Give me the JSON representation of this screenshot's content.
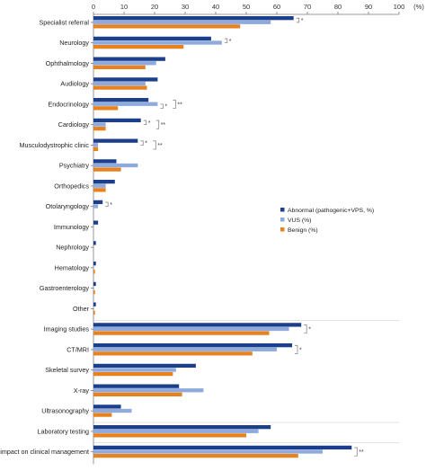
{
  "chart_data": {
    "type": "bar",
    "orientation": "horizontal",
    "unit_label": "(%)",
    "xlim": [
      0,
      100
    ],
    "xticks": [
      "0",
      "10",
      "20",
      "30",
      "40",
      "50",
      "60",
      "70",
      "80",
      "90",
      "100"
    ],
    "colors": [
      "#1c3f8c",
      "#8faadc",
      "#e8821f"
    ],
    "legend_placement": "middle-right",
    "series": [
      {
        "name": "Abnormal (pathogenic+VPS, %)"
      },
      {
        "name": "VUS (%)"
      },
      {
        "name": "Benign (%)"
      }
    ],
    "rows": [
      {
        "label": "Specialist referral",
        "values": [
          65.5,
          58,
          48
        ],
        "sig": [
          {
            "pair": "01",
            "mark": "*"
          }
        ]
      },
      {
        "label": "Neurology",
        "values": [
          38.5,
          42,
          29.5
        ],
        "sig": [
          {
            "pair": "01",
            "mark": "*"
          }
        ]
      },
      {
        "label": "Ophthalmology",
        "values": [
          23.5,
          20.5,
          17
        ],
        "sig": []
      },
      {
        "label": "Audiology",
        "values": [
          21,
          17,
          17.5
        ],
        "sig": []
      },
      {
        "label": "Endocrinology",
        "values": [
          18,
          21,
          8
        ],
        "sig": [
          {
            "pair": "12",
            "mark": "*"
          },
          {
            "pair": "02",
            "mark": "**"
          }
        ]
      },
      {
        "label": "Cardiology",
        "values": [
          15.5,
          4,
          4
        ],
        "sig": [
          {
            "pair": "01",
            "mark": "*"
          },
          {
            "pair": "02",
            "mark": "**"
          }
        ]
      },
      {
        "label": "Musculodystrophic clinic",
        "values": [
          14.5,
          1.5,
          1.5
        ],
        "sig": [
          {
            "pair": "01",
            "mark": "*"
          },
          {
            "pair": "02",
            "mark": "**"
          }
        ]
      },
      {
        "label": "Psychiatry",
        "values": [
          7.5,
          14.5,
          9
        ],
        "sig": []
      },
      {
        "label": "Orthopedics",
        "values": [
          7,
          4,
          4
        ],
        "sig": []
      },
      {
        "label": "Otolaryngology",
        "values": [
          3,
          1.5,
          0
        ],
        "sig": [
          {
            "pair": "01",
            "mark": "*"
          }
        ]
      },
      {
        "label": "Immunology",
        "values": [
          1.5,
          0,
          0
        ],
        "sig": []
      },
      {
        "label": "Nephrology",
        "values": [
          0.8,
          0,
          0
        ],
        "sig": []
      },
      {
        "label": "Hematology",
        "values": [
          0.8,
          0,
          0.5
        ],
        "sig": []
      },
      {
        "label": "Gastroenterology",
        "values": [
          0.8,
          0,
          0.5
        ],
        "sig": []
      },
      {
        "label": "Other",
        "values": [
          0.8,
          0,
          0.5
        ],
        "sig": []
      },
      {
        "label": "Imaging studies",
        "values": [
          68,
          64,
          57.5
        ],
        "sig": [
          {
            "pair": "02",
            "mark": "*"
          }
        ]
      },
      {
        "label": "CT/MRI",
        "values": [
          65,
          60,
          52
        ],
        "sig": [
          {
            "pair": "02",
            "mark": "*"
          }
        ]
      },
      {
        "label": "Skeletal survey",
        "values": [
          33.5,
          27,
          26
        ],
        "sig": []
      },
      {
        "label": "X-ray",
        "values": [
          28,
          36,
          29
        ],
        "sig": []
      },
      {
        "label": "Ultrasonography",
        "values": [
          9,
          12.5,
          6
        ],
        "sig": []
      },
      {
        "label": "Laboratory testing",
        "values": [
          58,
          54,
          50
        ],
        "sig": []
      },
      {
        "label": "Overall impact on clinical management",
        "values": [
          84.5,
          75,
          67
        ],
        "sig": [
          {
            "pair": "02",
            "mark": "**"
          }
        ]
      }
    ],
    "separators_after": [
      "Other",
      "Ultrasonography",
      "Laboratory testing"
    ]
  }
}
